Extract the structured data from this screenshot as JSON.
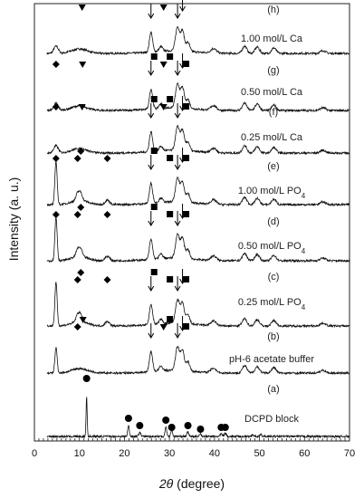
{
  "chart_data": {
    "type": "line",
    "xlabel_symbol": "2θ",
    "xlabel_unit": "(degree)",
    "ylabel": "Intensity (a. u.)",
    "xlim": [
      0,
      70
    ],
    "x_ticks": [
      0,
      10,
      20,
      30,
      40,
      50,
      60,
      70
    ],
    "grid": false,
    "legend": "none",
    "series": [
      {
        "code": "(h)",
        "label": "1.00 mol/L Ca",
        "sub": "",
        "markers": [
          {
            "x": 10.6,
            "shape": "triangle"
          },
          {
            "x": 25.9,
            "shape": "arrow"
          },
          {
            "x": 28.7,
            "shape": "triangle"
          },
          {
            "x": 31.8,
            "shape": "arrow"
          },
          {
            "x": 32.9,
            "shape": "arrow"
          }
        ]
      },
      {
        "code": "(g)",
        "label": "0.50 mol/L Ca",
        "sub": "",
        "markers": [
          {
            "x": 4.8,
            "shape": "diamond"
          },
          {
            "x": 10.7,
            "shape": "triangle"
          },
          {
            "x": 25.9,
            "shape": "arrow"
          },
          {
            "x": 26.6,
            "shape": "square"
          },
          {
            "x": 28.7,
            "shape": "triangle"
          },
          {
            "x": 30.1,
            "shape": "square"
          },
          {
            "x": 31.8,
            "shape": "arrow"
          },
          {
            "x": 32.9,
            "shape": "arrow"
          },
          {
            "x": 33.7,
            "shape": "square"
          }
        ]
      },
      {
        "code": "(f)",
        "label": "0.25 mol/L Ca",
        "sub": "",
        "markers": [
          {
            "x": 4.8,
            "shape": "diamond"
          },
          {
            "x": 10.6,
            "shape": "triangle"
          },
          {
            "x": 25.9,
            "shape": "arrow"
          },
          {
            "x": 26.6,
            "shape": "square"
          },
          {
            "x": 28.7,
            "shape": "triangle"
          },
          {
            "x": 30.1,
            "shape": "square"
          },
          {
            "x": 31.8,
            "shape": "arrow"
          },
          {
            "x": 32.9,
            "shape": "arrow"
          },
          {
            "x": 33.7,
            "shape": "square"
          }
        ]
      },
      {
        "code": "(e)",
        "label": "1.00 mol/L PO",
        "sub": "4",
        "markers": [
          {
            "x": 4.8,
            "shape": "diamond"
          },
          {
            "x": 9.6,
            "shape": "diamond"
          },
          {
            "x": 10.3,
            "shape": "diamond"
          },
          {
            "x": 16.2,
            "shape": "diamond"
          },
          {
            "x": 25.9,
            "shape": "arrow"
          },
          {
            "x": 26.6,
            "shape": "square"
          },
          {
            "x": 30.1,
            "shape": "square"
          },
          {
            "x": 31.8,
            "shape": "arrow"
          },
          {
            "x": 32.9,
            "shape": "arrow"
          },
          {
            "x": 33.7,
            "shape": "square"
          }
        ]
      },
      {
        "code": "(d)",
        "label": "0.50 mol/L PO",
        "sub": "4",
        "markers": [
          {
            "x": 4.8,
            "shape": "diamond"
          },
          {
            "x": 9.6,
            "shape": "diamond"
          },
          {
            "x": 10.3,
            "shape": "diamond"
          },
          {
            "x": 16.2,
            "shape": "diamond"
          },
          {
            "x": 25.9,
            "shape": "arrow"
          },
          {
            "x": 26.6,
            "shape": "square"
          },
          {
            "x": 30.1,
            "shape": "square"
          },
          {
            "x": 31.8,
            "shape": "arrow"
          },
          {
            "x": 32.9,
            "shape": "arrow"
          },
          {
            "x": 33.7,
            "shape": "square"
          }
        ]
      },
      {
        "code": "(c)",
        "label": "0.25 mol/L PO",
        "sub": "4",
        "markers": [
          {
            "x": 9.6,
            "shape": "diamond"
          },
          {
            "x": 10.3,
            "shape": "diamond"
          },
          {
            "x": 16.2,
            "shape": "diamond"
          },
          {
            "x": 25.9,
            "shape": "arrow"
          },
          {
            "x": 26.6,
            "shape": "square"
          },
          {
            "x": 30.1,
            "shape": "square"
          },
          {
            "x": 31.8,
            "shape": "arrow"
          },
          {
            "x": 32.9,
            "shape": "arrow"
          },
          {
            "x": 33.7,
            "shape": "square"
          }
        ]
      },
      {
        "code": "(b)",
        "label": "pH-6 acetate buffer",
        "sub": "",
        "markers": [
          {
            "x": 9.6,
            "shape": "diamond"
          },
          {
            "x": 10.8,
            "shape": "triangle"
          },
          {
            "x": 25.9,
            "shape": "arrow"
          },
          {
            "x": 28.7,
            "shape": "triangle"
          },
          {
            "x": 30.1,
            "shape": "square"
          },
          {
            "x": 31.8,
            "shape": "arrow"
          },
          {
            "x": 32.9,
            "shape": "arrow"
          },
          {
            "x": 33.7,
            "shape": "square"
          }
        ]
      },
      {
        "code": "(a)",
        "label": "DCPD block",
        "sub": "",
        "markers": [
          {
            "x": 11.6,
            "shape": "circle"
          },
          {
            "x": 20.9,
            "shape": "circle"
          },
          {
            "x": 23.4,
            "shape": "circle"
          },
          {
            "x": 29.2,
            "shape": "circle"
          },
          {
            "x": 30.5,
            "shape": "circle"
          },
          {
            "x": 34.1,
            "shape": "circle"
          },
          {
            "x": 36.9,
            "shape": "circle"
          },
          {
            "x": 41.5,
            "shape": "circle"
          },
          {
            "x": 42.4,
            "shape": "circle"
          }
        ]
      }
    ]
  }
}
